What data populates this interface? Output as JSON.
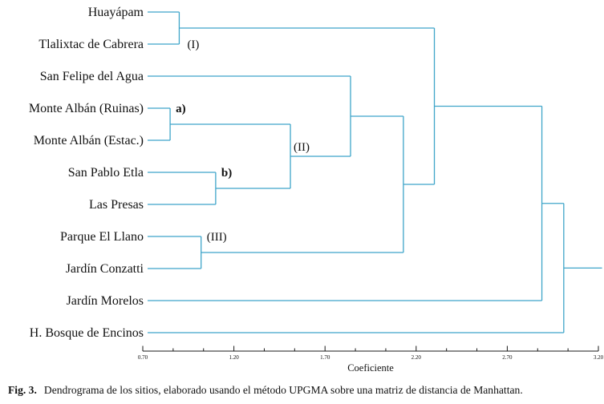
{
  "figure": {
    "caption_label": "Fig. 3.",
    "caption_text": "Dendrograma de los sitios, elaborado usando el método UPGMA sobre una matriz de distancia de Manhattan."
  },
  "chart_data": {
    "type": "dendrogram",
    "orientation": "horizontal-right",
    "line_color": "#3fa5c9",
    "axis_color": "#1a1a1a",
    "axis": {
      "label": "Coeficiente",
      "min": 0.7,
      "max": 3.2,
      "major_ticks": [
        "0.70",
        "1.20",
        "1.70",
        "2.20",
        "2.70",
        "3.20"
      ],
      "minor_ticks_between": 2
    },
    "leaves": [
      "Huayápam",
      "Tlalixtac de Cabrera",
      "San Felipe del Agua",
      "Monte Albán (Ruinas)",
      "Monte Albán (Estac.)",
      "San Pablo Etla",
      "Las Presas",
      "Parque El Llano",
      "Jardín Conzatti",
      "Jardín Morelos",
      "H. Bosque de Encinos"
    ],
    "merges": [
      {
        "name": "n1",
        "tag": "(I)",
        "tag_pos": "lower",
        "tag_bold": false,
        "children": [
          "L0",
          "L1"
        ],
        "coef": 0.9
      },
      {
        "name": "n2",
        "tag": "a)",
        "tag_pos": "upper",
        "tag_bold": true,
        "children": [
          "L3",
          "L4"
        ],
        "coef": 0.85
      },
      {
        "name": "n3",
        "tag": "b)",
        "tag_pos": "upper",
        "tag_bold": true,
        "children": [
          "L5",
          "L6"
        ],
        "coef": 1.1
      },
      {
        "name": "n4",
        "tag": "(III)",
        "tag_pos": "upper",
        "tag_bold": false,
        "children": [
          "L7",
          "L8"
        ],
        "coef": 1.02
      },
      {
        "name": "n5",
        "tag": "(II)",
        "tag_pos": "node",
        "tag_bold": false,
        "children": [
          "n2",
          "n3"
        ],
        "coef": 1.51
      },
      {
        "name": "n6",
        "children": [
          "L2",
          "n5"
        ],
        "coef": 1.84
      },
      {
        "name": "n7",
        "children": [
          "n6",
          "n4"
        ],
        "coef": 2.13
      },
      {
        "name": "n8",
        "children": [
          "n1",
          "n7"
        ],
        "coef": 2.3
      },
      {
        "name": "n9",
        "children": [
          "n8",
          "L9"
        ],
        "coef": 2.89
      },
      {
        "name": "n10",
        "children": [
          "n9",
          "L10"
        ],
        "coef": 3.01
      }
    ],
    "root_tip_coef": 3.22
  }
}
